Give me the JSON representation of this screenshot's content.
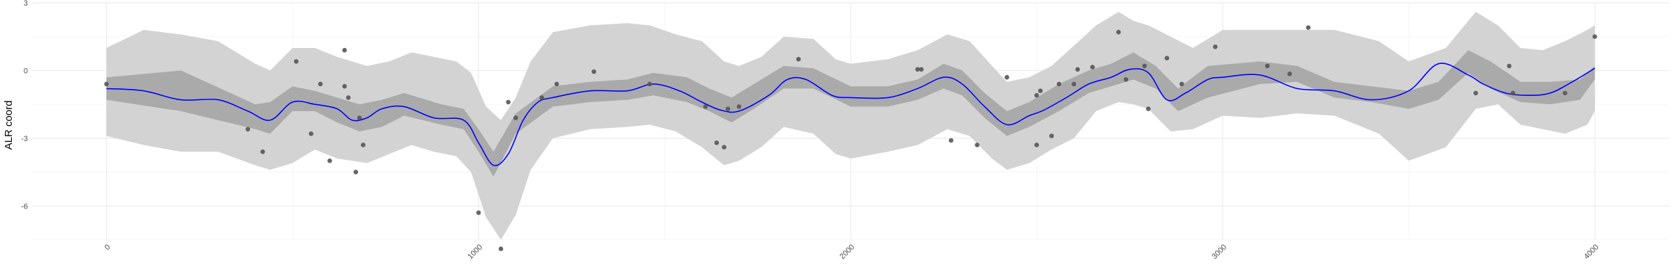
{
  "chart_data": {
    "type": "line",
    "title": "",
    "xlabel": "",
    "ylabel": "ALR coord",
    "xlim": [
      -200,
      4200
    ],
    "ylim": [
      -7.5,
      3
    ],
    "x_ticks": [
      0,
      1000,
      2000,
      3000,
      4000
    ],
    "x_tick_labels": [
      "0",
      "1000",
      "2000",
      "3000",
      "4000"
    ],
    "y_ticks": [
      -6,
      -3,
      0,
      3
    ],
    "y_tick_labels": [
      "-6",
      "-3",
      "0",
      "3"
    ],
    "grid": true,
    "colors": {
      "line": "#0000ff",
      "inner_band": "#aaaaaa",
      "outer_band": "#d3d3d3",
      "points": "#555555"
    },
    "series": [
      {
        "type": "line",
        "x": [
          0,
          100,
          200,
          300,
          380,
          440,
          500,
          560,
          620,
          660,
          700,
          740,
          800,
          880,
          960,
          1000,
          1040,
          1080,
          1120,
          1160,
          1200,
          1300,
          1400,
          1470,
          1540,
          1600,
          1650,
          1700,
          1780,
          1830,
          1880,
          1950,
          2000,
          2100,
          2180,
          2250,
          2300,
          2360,
          2420,
          2480,
          2520,
          2580,
          2640,
          2700,
          2750,
          2800,
          2850,
          2900,
          2960,
          3000,
          3100,
          3200,
          3300,
          3400,
          3500,
          3580,
          3660,
          3700,
          3760,
          3820,
          3880,
          3940,
          4000
        ],
        "y": [
          -0.8,
          -0.9,
          -1.3,
          -1.3,
          -1.8,
          -2.2,
          -1.4,
          -1.5,
          -1.7,
          -2.2,
          -2.1,
          -1.7,
          -1.6,
          -2.1,
          -2.2,
          -3.2,
          -4.2,
          -3.7,
          -2.2,
          -1.4,
          -1.2,
          -0.9,
          -0.9,
          -0.6,
          -0.9,
          -1.4,
          -1.75,
          -1.8,
          -1.1,
          -0.4,
          -0.4,
          -1.1,
          -1.2,
          -1.2,
          -0.8,
          -0.3,
          -0.6,
          -1.6,
          -2.4,
          -2.0,
          -1.75,
          -1.2,
          -0.6,
          -0.3,
          0.05,
          -0.1,
          -1.3,
          -1.0,
          -0.4,
          -0.3,
          -0.2,
          -0.8,
          -0.9,
          -1.3,
          -0.9,
          0.3,
          -0.2,
          -0.6,
          -1.0,
          -1.1,
          -1.0,
          -0.5,
          0.1
        ]
      },
      {
        "type": "band",
        "name": "",
        "x": [
          0,
          200,
          400,
          440,
          500,
          560,
          620,
          680,
          740,
          800,
          900,
          960,
          1000,
          1040,
          1100,
          1200,
          1300,
          1400,
          1470,
          1560,
          1620,
          1680,
          1740,
          1820,
          1900,
          2000,
          2100,
          2180,
          2250,
          2300,
          2360,
          2420,
          2480,
          2560,
          2640,
          2700,
          2760,
          2820,
          2880,
          2960,
          3100,
          3200,
          3300,
          3400,
          3500,
          3580,
          3660,
          3720,
          3800,
          3880,
          3960,
          4000
        ],
        "lower": [
          -1.3,
          -1.8,
          -2.6,
          -2.8,
          -1.8,
          -1.8,
          -2.3,
          -2.7,
          -2.5,
          -2.0,
          -2.4,
          -2.6,
          -3.6,
          -4.7,
          -2.8,
          -1.6,
          -1.4,
          -1.3,
          -1.1,
          -1.4,
          -1.8,
          -2.3,
          -1.7,
          -0.8,
          -0.8,
          -1.6,
          -1.6,
          -1.3,
          -0.8,
          -1.1,
          -2.1,
          -2.9,
          -2.5,
          -1.8,
          -1.0,
          -0.7,
          -0.4,
          -0.8,
          -1.8,
          -1.2,
          -0.6,
          -0.5,
          -1.2,
          -1.4,
          -1.7,
          -1.3,
          -0.1,
          -0.8,
          -1.4,
          -1.5,
          -1.3,
          -0.4
        ],
        "upper": [
          -0.3,
          0.0,
          -1.5,
          -1.4,
          -0.7,
          -0.9,
          -1.2,
          -1.5,
          -1.3,
          -1.0,
          -1.5,
          -1.7,
          -2.6,
          -3.6,
          -1.9,
          -0.7,
          -0.5,
          -0.4,
          -0.1,
          -0.3,
          -0.8,
          -1.2,
          -0.6,
          0.2,
          0.1,
          -0.7,
          -0.7,
          -0.4,
          0.3,
          0.0,
          -1.0,
          -1.8,
          -1.4,
          -0.6,
          0.0,
          0.3,
          0.8,
          0.2,
          -0.8,
          0.2,
          0.4,
          0.2,
          -0.5,
          -0.7,
          -0.9,
          -0.5,
          0.9,
          0.4,
          -0.5,
          -0.5,
          -0.4,
          0.2
        ]
      },
      {
        "type": "band",
        "name": "",
        "x": [
          0,
          100,
          200,
          300,
          400,
          440,
          500,
          560,
          620,
          700,
          760,
          820,
          880,
          940,
          980,
          1020,
          1060,
          1100,
          1140,
          1200,
          1300,
          1400,
          1460,
          1530,
          1600,
          1660,
          1700,
          1760,
          1820,
          1900,
          1960,
          2000,
          2100,
          2180,
          2260,
          2320,
          2380,
          2420,
          2480,
          2540,
          2600,
          2660,
          2720,
          2760,
          2800,
          2860,
          2920,
          3000,
          3100,
          3200,
          3300,
          3420,
          3500,
          3600,
          3680,
          3740,
          3800,
          3860,
          3920,
          3980,
          4000
        ],
        "lower": [
          -2.9,
          -3.3,
          -3.6,
          -3.6,
          -4.2,
          -4.4,
          -4.1,
          -3.5,
          -3.9,
          -4.1,
          -3.7,
          -3.3,
          -3.6,
          -3.8,
          -4.5,
          -6.5,
          -7.5,
          -6.4,
          -4.4,
          -3.0,
          -2.6,
          -2.5,
          -2.4,
          -2.7,
          -3.4,
          -4.2,
          -4.0,
          -3.4,
          -2.5,
          -2.8,
          -3.7,
          -3.9,
          -3.6,
          -3.3,
          -2.6,
          -2.9,
          -3.9,
          -4.4,
          -4.1,
          -3.5,
          -3.0,
          -1.8,
          -1.4,
          -1.5,
          -1.7,
          -2.7,
          -2.6,
          -2.0,
          -2.1,
          -1.9,
          -2.0,
          -2.8,
          -4.0,
          -3.4,
          -1.7,
          -1.5,
          -2.4,
          -2.6,
          -2.8,
          -2.4,
          -1.8
        ],
        "upper": [
          1.0,
          1.8,
          1.6,
          1.3,
          0.3,
          0.0,
          1.0,
          1.0,
          0.6,
          0.2,
          0.4,
          0.8,
          0.6,
          0.4,
          -0.1,
          -1.6,
          -2.2,
          -1.2,
          0.4,
          1.7,
          2.0,
          2.1,
          2.0,
          1.6,
          1.3,
          0.4,
          0.2,
          0.6,
          1.5,
          1.4,
          0.5,
          0.3,
          0.5,
          0.9,
          1.6,
          1.3,
          0.2,
          -0.5,
          -0.3,
          0.2,
          1.1,
          2.0,
          2.6,
          2.2,
          2.0,
          1.5,
          1.0,
          1.8,
          1.8,
          1.8,
          1.8,
          1.3,
          0.4,
          1.0,
          2.6,
          2.0,
          1.0,
          0.9,
          1.3,
          1.8,
          2.0
        ]
      },
      {
        "type": "scatter",
        "name": "",
        "x": [
          0,
          380,
          420,
          510,
          550,
          575,
          600,
          640,
          640,
          650,
          680,
          670,
          690,
          1000,
          1060,
          1080,
          1100,
          1170,
          1210,
          1310,
          1460,
          1610,
          1640,
          1660,
          1670,
          1700,
          1860,
          2190,
          2180,
          2270,
          2340,
          2420,
          2500,
          2500,
          2510,
          2540,
          2560,
          2600,
          2610,
          2650,
          2720,
          2740,
          2790,
          2800,
          2850,
          2890,
          2980,
          3120,
          3180,
          3230,
          3680,
          3770,
          3780,
          3920,
          4000
        ],
        "y": [
          -0.6,
          -2.6,
          -3.6,
          0.4,
          -2.8,
          -0.6,
          -4.0,
          0.9,
          -0.7,
          -1.2,
          -2.1,
          -4.5,
          -3.3,
          -6.3,
          -7.9,
          -1.4,
          -2.1,
          -1.2,
          -0.6,
          -0.05,
          -0.6,
          -1.6,
          -3.2,
          -3.4,
          -1.7,
          -1.6,
          0.5,
          0.05,
          0.05,
          -3.1,
          -3.3,
          -0.3,
          -1.1,
          -3.3,
          -0.9,
          -2.9,
          -0.6,
          -0.6,
          0.05,
          0.15,
          1.7,
          -0.4,
          0.2,
          -1.7,
          0.55,
          -0.6,
          1.05,
          0.2,
          -0.15,
          1.9,
          -1.0,
          0.2,
          -1.0,
          -1.0,
          1.5
        ]
      }
    ]
  }
}
